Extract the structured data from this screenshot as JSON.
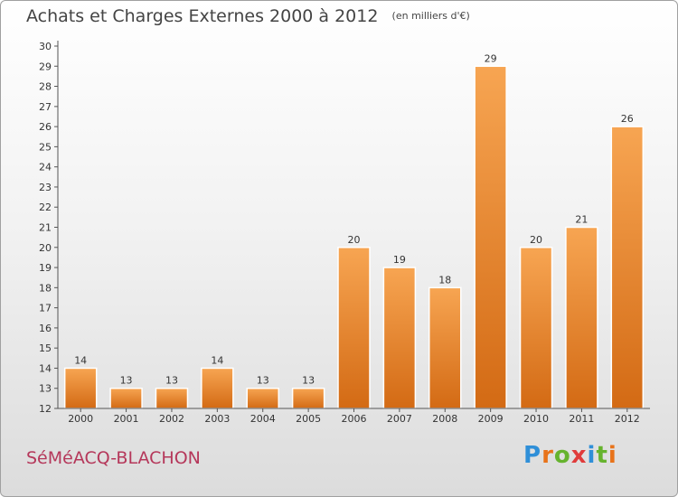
{
  "title": "Achats et Charges Externes 2000 à 2012",
  "unit": "(en milliers d'€)",
  "commune": "SéMéACQ-BLACHON",
  "logo": {
    "letters": [
      "P",
      "r",
      "o",
      "x",
      "i",
      "t",
      "i"
    ],
    "colors": [
      "#2f8fd8",
      "#e8731a",
      "#66b32e",
      "#e03b3b",
      "#2f8fd8",
      "#66b32e",
      "#e8731a"
    ]
  },
  "colors": {
    "bar_light": "#f7a552",
    "bar_dark": "#d36a14",
    "title": "#444444",
    "commune": "#b5375a"
  },
  "chart_data": {
    "type": "bar",
    "categories": [
      "2000",
      "2001",
      "2002",
      "2003",
      "2004",
      "2005",
      "2006",
      "2007",
      "2008",
      "2009",
      "2010",
      "2011",
      "2012"
    ],
    "values": [
      14,
      13,
      13,
      14,
      13,
      13,
      20,
      19,
      18,
      29,
      20,
      21,
      26
    ],
    "ylim": [
      12,
      30
    ],
    "yticks": [
      12,
      13,
      14,
      15,
      16,
      17,
      18,
      19,
      20,
      21,
      22,
      23,
      24,
      25,
      26,
      27,
      28,
      29,
      30
    ],
    "grid": false,
    "xlabel": "",
    "ylabel": ""
  }
}
